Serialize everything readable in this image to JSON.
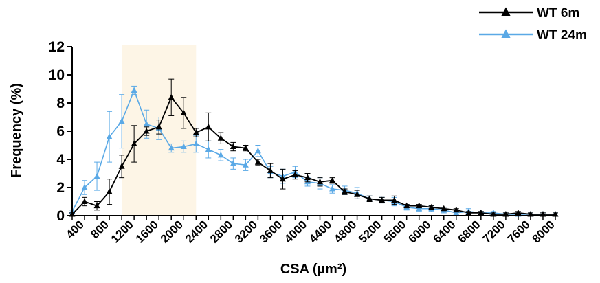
{
  "chart_data": {
    "type": "line",
    "xlabel": "CSA (µm²)",
    "ylabel": "Frequency (%)",
    "ylim": [
      0,
      12
    ],
    "yticks": [
      0,
      2,
      4,
      6,
      8,
      10,
      12
    ],
    "xlim": [
      200,
      8000
    ],
    "x_tick_labels": [
      "400",
      "800",
      "1200",
      "1600",
      "2000",
      "2400",
      "2800",
      "3200",
      "3600",
      "4000",
      "4400",
      "4800",
      "5200",
      "5600",
      "6000",
      "6400",
      "6800",
      "7200",
      "7600",
      "8000"
    ],
    "x_tick_values": [
      400,
      800,
      1200,
      1600,
      2000,
      2400,
      2800,
      3200,
      3600,
      4000,
      4400,
      4800,
      5200,
      5600,
      6000,
      6400,
      6800,
      7200,
      7600,
      8000
    ],
    "highlight_region": [
      1000,
      2200
    ],
    "legend_position": "top-right",
    "grid": false,
    "x": [
      200,
      400,
      600,
      800,
      1000,
      1200,
      1400,
      1600,
      1800,
      2000,
      2200,
      2400,
      2600,
      2800,
      3000,
      3200,
      3400,
      3600,
      3800,
      4000,
      4200,
      4400,
      4600,
      4800,
      5000,
      5200,
      5400,
      5600,
      5800,
      6000,
      6200,
      6400,
      6600,
      6800,
      7000,
      7200,
      7400,
      7600,
      7800,
      8000
    ],
    "series": [
      {
        "name": "WT 6m",
        "color": "#000000",
        "values": [
          0.1,
          1.0,
          0.7,
          1.7,
          3.5,
          5.1,
          6.0,
          6.3,
          8.4,
          7.3,
          5.9,
          6.3,
          5.5,
          4.9,
          4.8,
          3.8,
          3.2,
          2.6,
          2.9,
          2.7,
          2.4,
          2.5,
          1.7,
          1.5,
          1.2,
          1.1,
          1.1,
          0.7,
          0.7,
          0.6,
          0.5,
          0.4,
          0.2,
          0.2,
          0.1,
          0.1,
          0.2,
          0.1,
          0.1,
          0.1
        ],
        "errors": [
          0.1,
          0.3,
          0.3,
          0.9,
          0.8,
          1.3,
          0.3,
          0.5,
          1.3,
          1.1,
          0.3,
          1.0,
          0.4,
          0.3,
          0.2,
          0.2,
          0.5,
          0.7,
          0.3,
          0.3,
          0.3,
          0.2,
          0.2,
          0.3,
          0.2,
          0.2,
          0.3,
          0.1,
          0.1,
          0.1,
          0.1,
          0.1,
          0.1,
          0.1,
          0.1,
          0.1,
          0.1,
          0.1,
          0.1,
          0.1
        ]
      },
      {
        "name": "WT 24m",
        "color": "#5aa9e6",
        "values": [
          0.3,
          2.0,
          2.8,
          5.6,
          6.7,
          8.9,
          6.5,
          6.2,
          4.8,
          4.9,
          5.1,
          4.7,
          4.3,
          3.7,
          3.6,
          4.6,
          3.1,
          2.8,
          3.1,
          2.4,
          2.3,
          1.9,
          1.8,
          1.6,
          1.2,
          1.1,
          1.0,
          0.6,
          0.5,
          0.5,
          0.4,
          0.2,
          0.3,
          0.2,
          0.2,
          0.1,
          0.1,
          0.1,
          0.1,
          0.1
        ],
        "errors": [
          0.1,
          0.5,
          1.0,
          1.8,
          1.9,
          0.3,
          1.0,
          0.8,
          0.3,
          0.4,
          0.6,
          0.6,
          0.4,
          0.4,
          0.4,
          0.4,
          0.4,
          0.5,
          0.4,
          0.3,
          0.4,
          0.3,
          0.3,
          0.4,
          0.2,
          0.2,
          0.3,
          0.2,
          0.2,
          0.2,
          0.2,
          0.2,
          0.2,
          0.1,
          0.1,
          0.1,
          0.1,
          0.1,
          0.1,
          0.1
        ]
      }
    ]
  }
}
